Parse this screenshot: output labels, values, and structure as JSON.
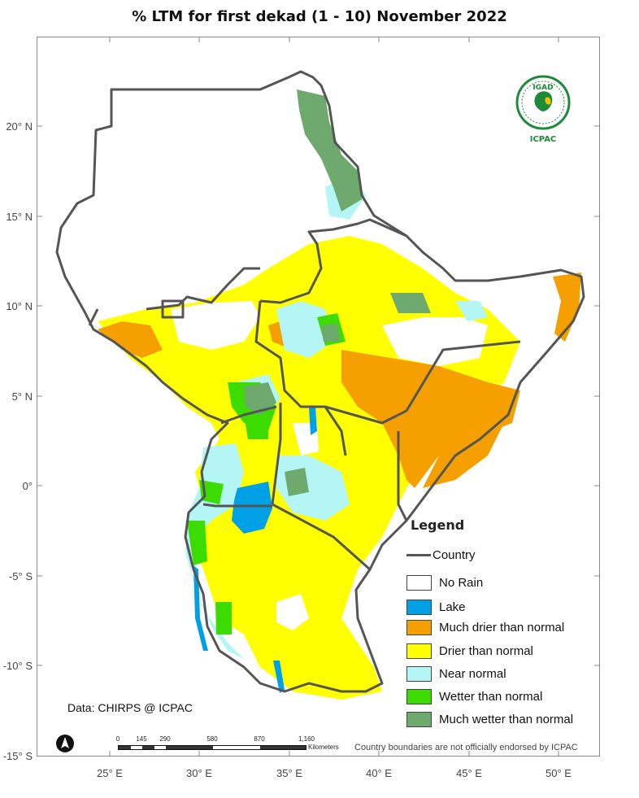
{
  "title": "% LTM for  first dekad (1 - 10) November 2022",
  "lat_labels": [
    "20° N",
    "15° N",
    "10° N",
    "5° N",
    "0°",
    "-5° S",
    "-10° S",
    "-15° S"
  ],
  "lon_labels": [
    "25° E",
    "30° E",
    "35° E",
    "40° E",
    "45° E",
    "50° E"
  ],
  "legend": {
    "title": "Legend",
    "country": "Country",
    "items": [
      {
        "label": "No Rain",
        "color": "#ffffff"
      },
      {
        "label": "Lake",
        "color": "#00a0e6"
      },
      {
        "label": "Much drier than normal",
        "color": "#f5a000"
      },
      {
        "label": "Drier than normal",
        "color": "#ffff00"
      },
      {
        "label": "Near normal",
        "color": "#b4f5f5"
      },
      {
        "label": "Wetter than normal",
        "color": "#3cdc00"
      },
      {
        "label": "Much wetter than normal",
        "color": "#6ea96e"
      }
    ]
  },
  "credit": "Data: CHIRPS @ ICPAC",
  "disclaimer": "Country boundaries are not officially endorsed by ICPAC",
  "scale": {
    "ticks": [
      "0",
      "145",
      "290",
      "580",
      "870",
      "1,160"
    ],
    "unit": "Kilometers"
  },
  "logo": {
    "top": "IGAD",
    "bottom": "ICPAC"
  },
  "colors": {
    "border": "#555555",
    "frame": "#8a8a8a"
  }
}
